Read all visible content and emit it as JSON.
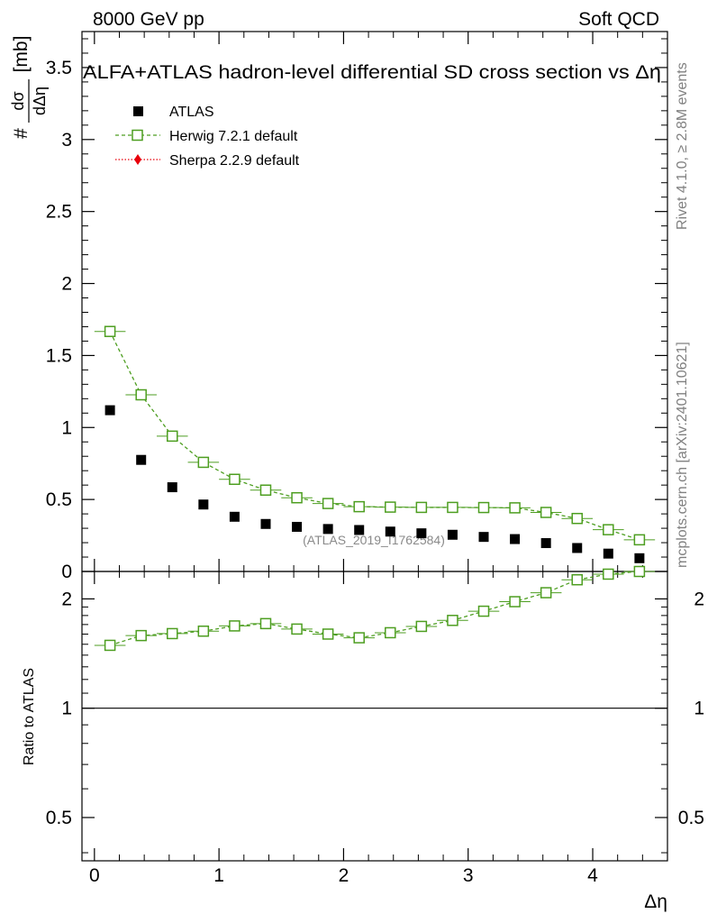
{
  "header": {
    "left": "8000 GeV pp",
    "right": "Soft QCD"
  },
  "side_labels": {
    "rivet": "Rivet 4.1.0, ≥ 2.8M events",
    "mcplots": "mcplots.cern.ch [arXiv:2401.10621]"
  },
  "watermark": "(ATLAS_2019_I1762584)",
  "chart_data": [
    {
      "type": "scatter",
      "panel": "main",
      "title": "ALFA+ATLAS hadron-level differential SD cross section vs Δη",
      "ylabel_prefix": "#",
      "ylabel_num": "dσ",
      "ylabel_den": "dΔη",
      "ylabel_unit": "[mb]",
      "xlabel": "",
      "xlim": [
        -0.1,
        4.6
      ],
      "ylim": [
        0,
        3.75
      ],
      "yticks": [
        0,
        0.5,
        1,
        1.5,
        2,
        2.5,
        3,
        3.5
      ],
      "ytick_labels": [
        "0",
        "0.5",
        "1",
        "1.5",
        "2",
        "2.5",
        "3",
        "3.5"
      ],
      "x": [
        0.125,
        0.375,
        0.625,
        0.875,
        1.125,
        1.375,
        1.625,
        1.875,
        2.125,
        2.375,
        2.625,
        2.875,
        3.125,
        3.375,
        3.625,
        3.875,
        4.125,
        4.375
      ],
      "series": [
        {
          "name": "ATLAS",
          "color": "#000000",
          "marker": "filled-square",
          "values": [
            1.12,
            0.775,
            0.585,
            0.465,
            0.38,
            0.33,
            0.31,
            0.295,
            0.288,
            0.277,
            0.265,
            0.255,
            0.24,
            0.225,
            0.197,
            0.163,
            0.124,
            0.092
          ]
        },
        {
          "name": "Herwig 7.2.1 default",
          "color": "#4d9e20",
          "marker": "open-square-dashed",
          "values": [
            1.667,
            1.227,
            0.94,
            0.758,
            0.64,
            0.565,
            0.512,
            0.472,
            0.45,
            0.447,
            0.445,
            0.445,
            0.444,
            0.442,
            0.41,
            0.368,
            0.29,
            0.22
          ]
        },
        {
          "name": "Sherpa 2.2.9 default",
          "color": "#e8000b",
          "marker": "diamond-dotted",
          "values": []
        }
      ]
    },
    {
      "type": "line",
      "panel": "ratio",
      "ylabel": "Ratio to ATLAS",
      "xlabel": "Δη",
      "yscale": "log",
      "ylim": [
        0.38,
        2.38
      ],
      "xlim": [
        -0.1,
        4.6
      ],
      "yticks": [
        0.5,
        1,
        2
      ],
      "ytick_labels": [
        "0.5",
        "1",
        "2"
      ],
      "xticks": [
        0,
        1,
        2,
        3,
        4
      ],
      "xtick_labels": [
        "0",
        "1",
        "2",
        "3",
        "4"
      ],
      "reference_line": 1,
      "x": [
        0.125,
        0.375,
        0.625,
        0.875,
        1.125,
        1.375,
        1.625,
        1.875,
        2.125,
        2.375,
        2.625,
        2.875,
        3.125,
        3.375,
        3.625,
        3.875,
        4.125,
        4.375
      ],
      "series": [
        {
          "name": "Herwig 7.2.1 default",
          "color": "#4d9e20",
          "values": [
            1.49,
            1.585,
            1.605,
            1.63,
            1.685,
            1.71,
            1.652,
            1.6,
            1.563,
            1.614,
            1.68,
            1.745,
            1.85,
            1.965,
            2.08,
            2.258,
            2.34,
            2.39
          ]
        }
      ]
    }
  ]
}
